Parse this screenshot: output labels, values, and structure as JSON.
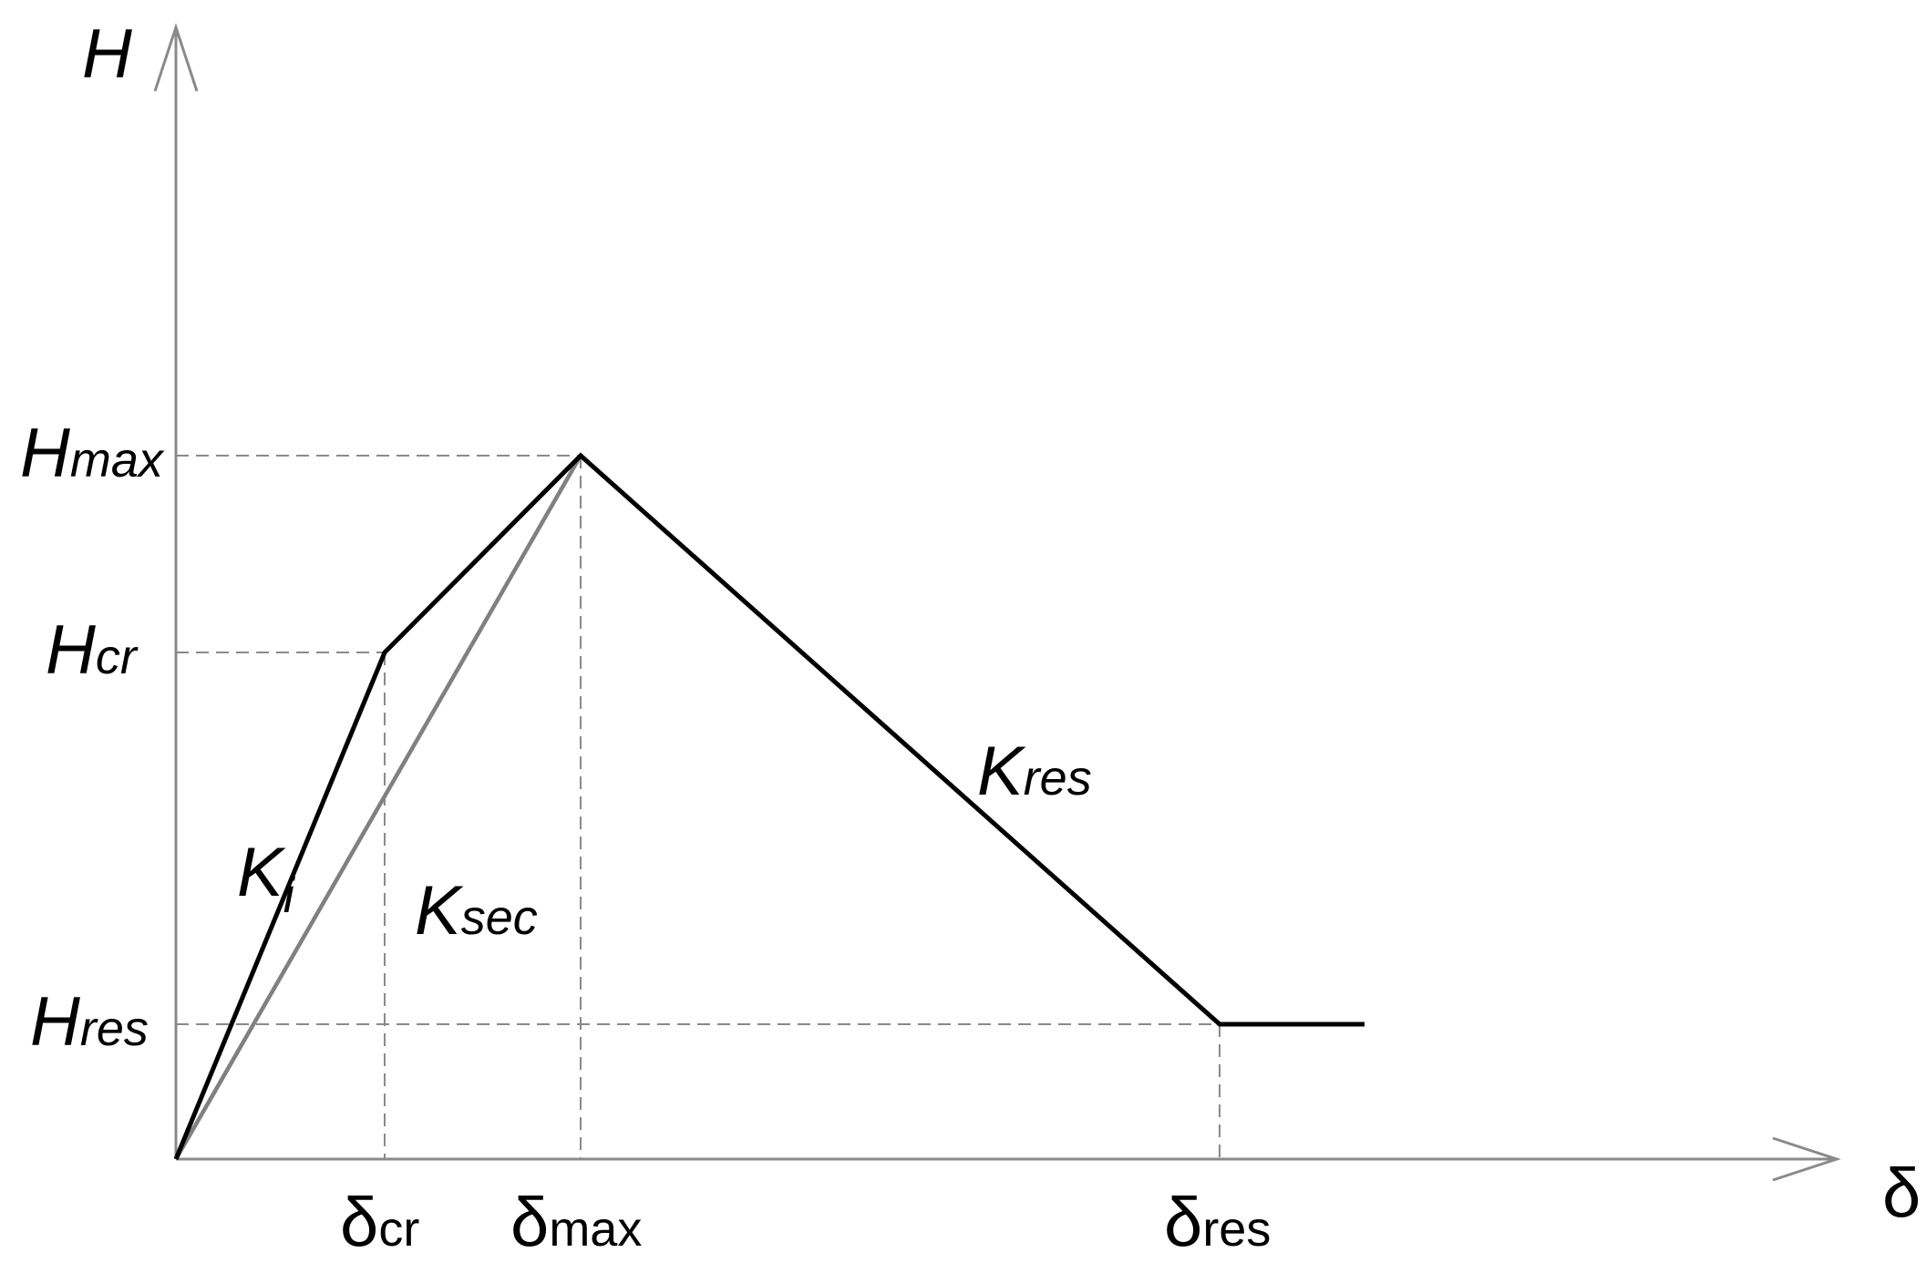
{
  "axes": {
    "y_label": "H",
    "x_label": "δ"
  },
  "y_levels": [
    {
      "key": "max",
      "base": "H",
      "sub": "max"
    },
    {
      "key": "cr",
      "base": "H",
      "sub": "cr"
    },
    {
      "key": "res",
      "base": "H",
      "sub": "res"
    }
  ],
  "x_levels": [
    {
      "key": "cr",
      "base": "δ",
      "sub": "cr"
    },
    {
      "key": "max",
      "base": "δ",
      "sub": "max"
    },
    {
      "key": "res",
      "base": "δ",
      "sub": "res"
    }
  ],
  "stiffness_labels": [
    {
      "key": "initial",
      "base": "K",
      "sub": "i"
    },
    {
      "key": "secant",
      "base": "K",
      "sub": "sec"
    },
    {
      "key": "residual",
      "base": "K",
      "sub": "res"
    }
  ],
  "curve": {
    "backbone_color": "#000000",
    "secant_color": "#808080",
    "guide_color": "#8a8a8a"
  }
}
